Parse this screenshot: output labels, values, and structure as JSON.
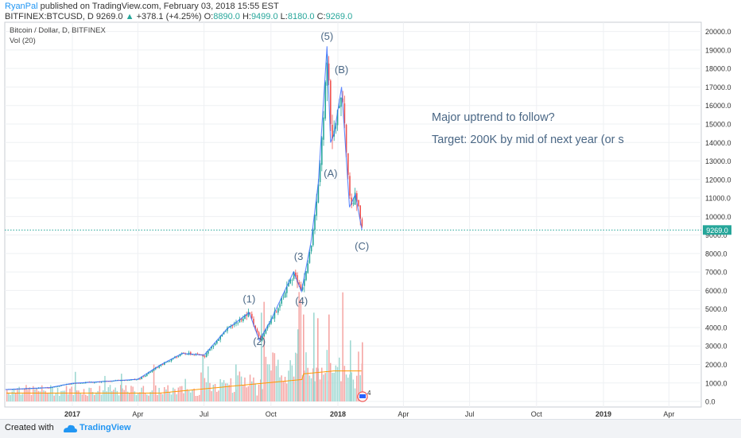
{
  "header": {
    "user": "RyanPal",
    "published": "published on TradingView.com, February 03, 2018 15:55 EST",
    "symbol": "BITFINEX:BTCUSD, D",
    "last": "9269.0",
    "change": "+378.1 (+4.25%)",
    "open_label": "O:",
    "open": "8890.0",
    "high_label": "H:",
    "high": "9499.0",
    "low_label": "L:",
    "low": "8180.0",
    "close_label": "C:",
    "close": "9269.0"
  },
  "legend": {
    "title": "Bitcoin / Dollar, D, BITFINEX",
    "vol": "Vol (20)"
  },
  "footer": {
    "created": "Created with",
    "brand": "TradingView"
  },
  "colors": {
    "up": "#26a69a",
    "down": "#ef5350",
    "wave_line": "#2962ff",
    "annotation_text": "#4a6785",
    "price_line": "#26a69a",
    "volume_ma": "#ff9800"
  },
  "icons": [
    "up-triangle-icon",
    "tradingview-logo-icon",
    "flag-icon"
  ],
  "chart_data": {
    "type": "line",
    "x_ticks": [
      "2017",
      "Apr",
      "Jul",
      "Oct",
      "2018",
      "Apr",
      "Jul",
      "Oct",
      "2019",
      "Apr"
    ],
    "y_ticks": [
      "0.0",
      "1000.0",
      "2000.0",
      "3000.0",
      "4000.0",
      "5000.0",
      "6000.0",
      "7000.0",
      "8000.0",
      "9000.0",
      "10000.0",
      "11000.0",
      "12000.0",
      "13000.0",
      "14000.0",
      "15000.0",
      "16000.0",
      "17000.0",
      "18000.0",
      "19000.0",
      "20000.0"
    ],
    "ylim": [
      -300,
      20500
    ],
    "x": [
      "2016-10-01",
      "2016-12-01",
      "2017-01-01",
      "2017-02-01",
      "2017-03-01",
      "2017-04-01",
      "2017-05-01",
      "2017-06-01",
      "2017-07-01",
      "2017-08-01",
      "2017-09-01",
      "2017-09-15",
      "2017-10-01",
      "2017-11-01",
      "2017-11-12",
      "2017-11-25",
      "2017-12-05",
      "2017-12-17",
      "2017-12-22",
      "2017-12-27",
      "2018-01-06",
      "2018-01-17",
      "2018-01-25",
      "2018-02-03"
    ],
    "series": [
      {
        "values": [
          640,
          750,
          980,
          1050,
          1120,
          1200,
          1950,
          2600,
          2500,
          3900,
          4800,
          3300,
          4400,
          7000,
          5950,
          8600,
          11800,
          19200,
          14000,
          14500,
          17000,
          10500,
          11200,
          9269
        ]
      }
    ],
    "price_line": 9269.0,
    "price_label": "9269.0",
    "wave_labels": [
      {
        "label": "(1)",
        "x": "2017-09-01",
        "y": 5350
      },
      {
        "label": "(2)",
        "x": "2017-09-15",
        "y": 3050
      },
      {
        "label": "(3",
        "x": "2017-11-08",
        "y": 7650
      },
      {
        "label": "(4)",
        "x": "2017-11-12",
        "y": 5250
      },
      {
        "label": "(5)",
        "x": "2017-12-17",
        "y": 19550
      },
      {
        "label": "(A)",
        "x": "2017-12-22",
        "y": 12150
      },
      {
        "label": "(B)",
        "x": "2018-01-06",
        "y": 17750
      },
      {
        "label": "(C)",
        "x": "2018-02-03",
        "y": 8200
      }
    ],
    "annotations": [
      "Major uptrend to follow?",
      "Target: 200K by mid of next year (or s"
    ],
    "flag_count": "4"
  }
}
